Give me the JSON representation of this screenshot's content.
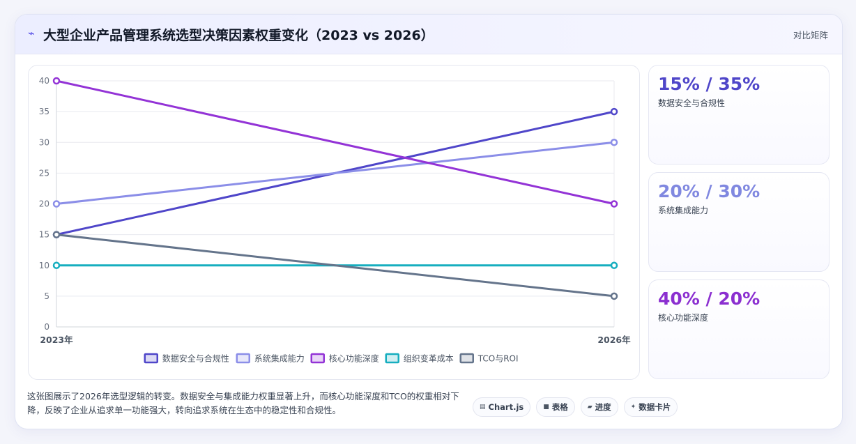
{
  "header": {
    "icon": "lightning-icon",
    "title": "大型企业产品管理系统选型决策因素权重变化（2023 vs 2026）",
    "right_label": "对比矩阵"
  },
  "chart_data": {
    "type": "line",
    "x": [
      "2023年",
      "2026年"
    ],
    "ylim": [
      0,
      40
    ],
    "yticks": [
      0,
      5,
      10,
      15,
      20,
      25,
      30,
      35,
      40
    ],
    "grid": true,
    "legend_position": "bottom",
    "series": [
      {
        "name": "数据安全与合规性",
        "values": [
          15,
          35
        ],
        "color": "#4f46c9"
      },
      {
        "name": "系统集成能力",
        "values": [
          20,
          30
        ],
        "color": "#8b8ee8"
      },
      {
        "name": "核心功能深度",
        "values": [
          40,
          20
        ],
        "color": "#9333d6"
      },
      {
        "name": "组织变革成本",
        "values": [
          10,
          10
        ],
        "color": "#16aebf"
      },
      {
        "name": "TCO与ROI",
        "values": [
          15,
          5
        ],
        "color": "#64748b"
      }
    ]
  },
  "stats": [
    {
      "value": "15% / 35%",
      "label": "数据安全与合规性",
      "color": "#4f46c9"
    },
    {
      "value": "20% / 30%",
      "label": "系统集成能力",
      "color": "#8088e0"
    },
    {
      "value": "40% / 20%",
      "label": "核心功能深度",
      "color": "#8b2fd0"
    }
  ],
  "footer": {
    "description": "这张图展示了2026年选型逻辑的转变。数据安全与集成能力权重显著上升，而核心功能深度和TCO的权重相对下降，反映了企业从追求单一功能强大，转向追求系统在生态中的稳定性和合规性。",
    "tags": [
      {
        "icon": "chart-icon",
        "glyph": "▤",
        "label": "Chart.js"
      },
      {
        "icon": "table-icon",
        "glyph": "■",
        "label": "表格"
      },
      {
        "icon": "progress-icon",
        "glyph": "▰",
        "label": "进度"
      },
      {
        "icon": "sparkle-icon",
        "glyph": "✦",
        "label": "数据卡片"
      }
    ]
  }
}
